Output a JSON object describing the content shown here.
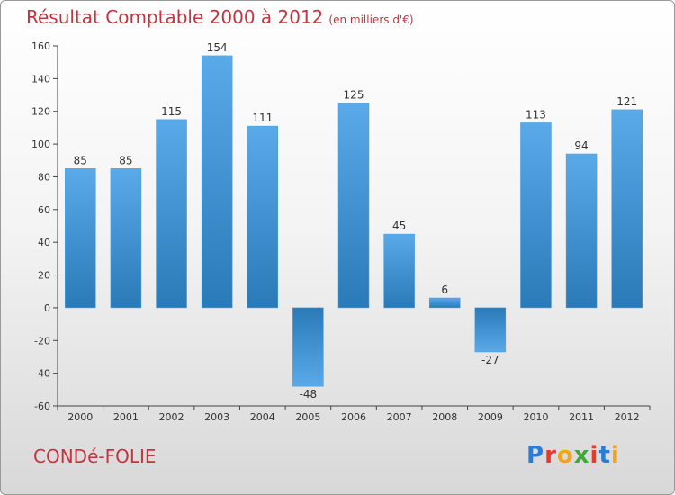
{
  "chart_data": {
    "type": "bar",
    "title": "Résultat Comptable 2000 à 2012",
    "subtitle": "(en milliers d'€)",
    "categories": [
      "2000",
      "2001",
      "2002",
      "2003",
      "2004",
      "2005",
      "2006",
      "2007",
      "2008",
      "2009",
      "2010",
      "2011",
      "2012"
    ],
    "values": [
      85,
      85,
      115,
      154,
      111,
      -48,
      125,
      45,
      6,
      -27,
      113,
      94,
      121
    ],
    "ylim": [
      -60,
      160
    ],
    "yticks": [
      -60,
      -40,
      -20,
      0,
      20,
      40,
      60,
      80,
      100,
      120,
      140,
      160
    ],
    "xlabel": "",
    "ylabel": "",
    "grid": false
  },
  "footer": {
    "commune": "CONDé-FOLIE",
    "brand_letters": [
      "P",
      "r",
      "o",
      "x",
      "i",
      "t",
      "i"
    ],
    "brand_colors": [
      "#2b7bd8",
      "#e8392c",
      "#f2a51c",
      "#3fa83a",
      "#e8392c",
      "#2b7bd8",
      "#f2a51c"
    ]
  },
  "colors": {
    "bar_top": "#5aaaea",
    "bar_bottom": "#2a7ab8",
    "title": "#c0353f"
  }
}
